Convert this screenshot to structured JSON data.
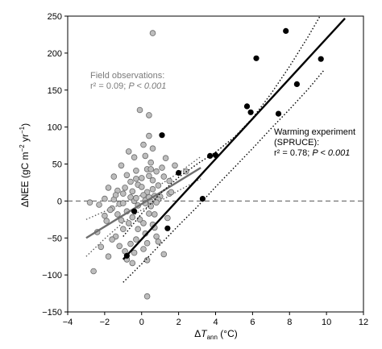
{
  "chart_data": {
    "type": "scatter",
    "xlim": [
      -4,
      12
    ],
    "ylim": [
      -150,
      250
    ],
    "x_ticks": [
      -4,
      -2,
      0,
      2,
      4,
      6,
      8,
      10,
      12
    ],
    "y_ticks": [
      -150,
      -100,
      -50,
      0,
      50,
      100,
      150,
      200,
      250
    ],
    "xlabel": {
      "prefix": "Δ",
      "italic": "T",
      "subscript": "ann",
      "unit": " (°C)"
    },
    "ylabel": {
      "prefix": "ΔNEE (gC m",
      "sup1": "−2",
      "mid": " yr",
      "sup2": "−1",
      "suffix": ")"
    },
    "zero_line": {
      "y": 0,
      "style": "dashed"
    },
    "colors": {
      "field": "#bdbdbd",
      "field_line": "#6e6e6e",
      "warming": "#000000"
    },
    "annotations": {
      "field": {
        "line1": "Field observations:",
        "r2": "r² = 0.09; ",
        "p": "P < 0.001"
      },
      "warming": {
        "line1": "Warming experiment",
        "line2": "(SPRUCE):",
        "r2": "r² = 0.78; ",
        "p": "P < 0.001"
      }
    },
    "field_observations": {
      "points": [
        [
          0.6,
          227
        ],
        [
          -0.1,
          123
        ],
        [
          0.4,
          116
        ],
        [
          0.4,
          88
        ],
        [
          0.1,
          76
        ],
        [
          0.6,
          71
        ],
        [
          0.2,
          61
        ],
        [
          1.3,
          58
        ],
        [
          0.5,
          52
        ],
        [
          1.8,
          48
        ],
        [
          0.3,
          43
        ],
        [
          0.8,
          40
        ],
        [
          1.2,
          33
        ],
        [
          -0.3,
          30
        ],
        [
          0.6,
          28
        ],
        [
          -0.2,
          22
        ],
        [
          0.9,
          21
        ],
        [
          -1.8,
          18
        ],
        [
          -1.3,
          14
        ],
        [
          -0.5,
          13
        ],
        [
          0.3,
          12
        ],
        [
          -1.0,
          10
        ],
        [
          0.1,
          8
        ],
        [
          0.7,
          7
        ],
        [
          1.0,
          6
        ],
        [
          -0.6,
          5
        ],
        [
          -2.0,
          3
        ],
        [
          -1.5,
          2
        ],
        [
          0.2,
          1
        ],
        [
          -0.4,
          0
        ],
        [
          0.5,
          -1
        ],
        [
          -2.3,
          -5
        ],
        [
          -1.2,
          -4
        ],
        [
          -0.2,
          -6
        ],
        [
          0.5,
          -7
        ],
        [
          -1.6,
          -10
        ],
        [
          -0.8,
          -14
        ],
        [
          0.4,
          -17
        ],
        [
          -1.3,
          -18
        ],
        [
          -0.5,
          -22
        ],
        [
          -0.1,
          -25
        ],
        [
          -1.9,
          -27
        ],
        [
          -0.7,
          -30
        ],
        [
          0.6,
          -32
        ],
        [
          -1.0,
          -38
        ],
        [
          -2.4,
          -42
        ],
        [
          0.2,
          -44
        ],
        [
          -1.4,
          -48
        ],
        [
          -0.3,
          -52
        ],
        [
          0.9,
          -55
        ],
        [
          -0.6,
          -58
        ],
        [
          -1.2,
          -61
        ],
        [
          0.1,
          -65
        ],
        [
          -0.4,
          -70
        ],
        [
          -1.8,
          -75
        ],
        [
          -0.8,
          -79
        ],
        [
          0.3,
          -80
        ],
        [
          1.2,
          -72
        ],
        [
          -2.6,
          -95
        ],
        [
          0.3,
          -129
        ],
        [
          -0.9,
          18
        ],
        [
          -0.3,
          41
        ],
        [
          1.5,
          10
        ],
        [
          -1.1,
          -26
        ],
        [
          0.8,
          -48
        ],
        [
          -0.6,
          26
        ],
        [
          -1.7,
          -12
        ],
        [
          0.0,
          19
        ],
        [
          0.9,
          2
        ],
        [
          -0.2,
          -38
        ],
        [
          0.3,
          -57
        ],
        [
          -1.5,
          33
        ],
        [
          1.5,
          27
        ],
        [
          -0.4,
          59
        ],
        [
          0.5,
          43
        ],
        [
          -2.2,
          -62
        ],
        [
          -1.0,
          -3
        ],
        [
          0.7,
          -18
        ],
        [
          -0.8,
          35
        ],
        [
          0.2,
          -3
        ],
        [
          1.1,
          45
        ],
        [
          -0.5,
          -84
        ],
        [
          0.6,
          16
        ],
        [
          -1.6,
          -52
        ],
        [
          0.0,
          31
        ],
        [
          -2.0,
          -20
        ],
        [
          1.4,
          -23
        ],
        [
          -1.4,
          8
        ],
        [
          0.8,
          -2
        ],
        [
          -0.7,
          67
        ],
        [
          0.4,
          34
        ],
        [
          -1.1,
          48
        ],
        [
          2.4,
          40
        ],
        [
          0.7,
          -36
        ],
        [
          -0.3,
          4
        ],
        [
          0.1,
          -30
        ],
        [
          1.6,
          12
        ],
        [
          -0.9,
          -68
        ],
        [
          0.4,
          5
        ],
        [
          -2.8,
          -2
        ]
      ],
      "fit": {
        "x0": -3.0,
        "y0": -50,
        "x1": 3.2,
        "y1": 45
      },
      "ci_upper": [
        [
          -3.0,
          -25
        ],
        [
          -2.0,
          -14
        ],
        [
          -1.0,
          -3
        ],
        [
          0.0,
          8
        ],
        [
          1.0,
          22
        ],
        [
          2.0,
          38
        ],
        [
          3.2,
          60
        ]
      ],
      "ci_lower": [
        [
          -3.0,
          -75
        ],
        [
          -2.0,
          -51
        ],
        [
          -1.0,
          -29
        ],
        [
          0.0,
          -12
        ],
        [
          1.0,
          0
        ],
        [
          2.0,
          14
        ],
        [
          3.2,
          30
        ]
      ]
    },
    "warming_experiment": {
      "points": [
        [
          7.8,
          230
        ],
        [
          6.2,
          193
        ],
        [
          9.7,
          192
        ],
        [
          8.4,
          158
        ],
        [
          5.7,
          128
        ],
        [
          5.9,
          120
        ],
        [
          7.4,
          118
        ],
        [
          1.1,
          89
        ],
        [
          4.0,
          62
        ],
        [
          3.7,
          61
        ],
        [
          2.0,
          38
        ],
        [
          3.3,
          3
        ],
        [
          -0.4,
          -14
        ],
        [
          1.4,
          -37
        ],
        [
          -0.8,
          -74
        ]
      ],
      "fit": {
        "x0": -1.0,
        "y0": -79,
        "x1": 11.0,
        "y1": 247
      },
      "ci_upper": [
        [
          -1.0,
          -48
        ],
        [
          0.0,
          -17
        ],
        [
          1.0,
          10
        ],
        [
          2.0,
          32
        ],
        [
          3.0,
          50
        ],
        [
          4.0,
          66
        ],
        [
          5.0,
          86
        ],
        [
          6.0,
          112
        ],
        [
          7.0,
          145
        ],
        [
          8.0,
          182
        ],
        [
          9.0,
          222
        ],
        [
          10.0,
          265
        ]
      ],
      "ci_lower": [
        [
          -1.0,
          -110
        ],
        [
          0.0,
          -85
        ],
        [
          1.0,
          -59
        ],
        [
          2.0,
          -33
        ],
        [
          3.0,
          -8
        ],
        [
          4.0,
          19
        ],
        [
          5.0,
          45
        ],
        [
          6.0,
          71
        ],
        [
          7.0,
          98
        ],
        [
          8.0,
          124
        ],
        [
          9.0,
          151
        ],
        [
          9.9,
          178
        ]
      ]
    }
  }
}
